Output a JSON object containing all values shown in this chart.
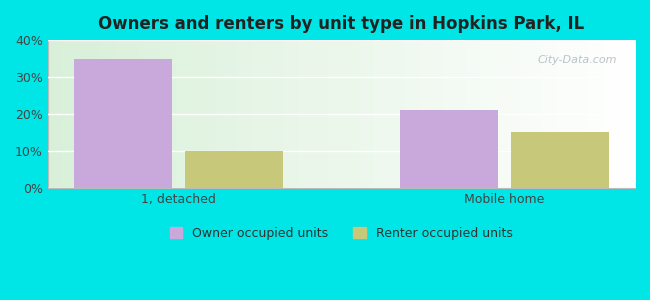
{
  "title": "Owners and renters by unit type in Hopkins Park, IL",
  "categories": [
    "1, detached",
    "Mobile home"
  ],
  "owner_values": [
    35,
    21
  ],
  "renter_values": [
    10,
    15
  ],
  "owner_color": "#c9a8dc",
  "renter_color": "#c8c87a",
  "owner_label": "Owner occupied units",
  "renter_label": "Renter occupied units",
  "ylim": [
    0,
    40
  ],
  "yticks": [
    0,
    10,
    20,
    30,
    40
  ],
  "ytick_labels": [
    "0%",
    "10%",
    "20%",
    "30%",
    "40%"
  ],
  "bg_outer": "#00e5e5",
  "watermark": "City-Data.com",
  "bar_width": 0.3,
  "group_centers": [
    0.4,
    1.4
  ],
  "xlim": [
    0,
    1.8
  ]
}
